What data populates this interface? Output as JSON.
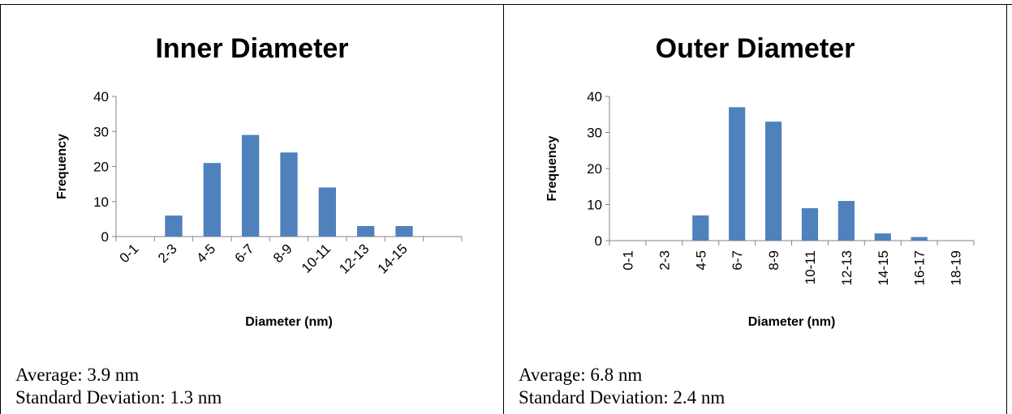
{
  "panels": [
    {
      "average": "Average: 3.9 nm",
      "std_dev": "Standard Deviation: 1.3 nm"
    },
    {
      "average": "Average: 6.8 nm",
      "std_dev": "Standard Deviation: 2.4 nm"
    }
  ],
  "chart_data": [
    {
      "type": "bar",
      "title": "Inner Diameter",
      "xlabel": "Diameter (nm)",
      "ylabel": "Frequency",
      "categories": [
        "0-1",
        "2-3",
        "4-5",
        "6-7",
        "8-9",
        "10-11",
        "12-13",
        "14-15",
        ""
      ],
      "values": [
        0,
        6,
        21,
        29,
        24,
        14,
        3,
        3,
        0
      ],
      "ylim": [
        0,
        40
      ],
      "yticks": [
        0,
        10,
        20,
        30,
        40
      ],
      "tick_rotation": "diagonal",
      "grid": false,
      "bar_color": "#4f81bd"
    },
    {
      "type": "bar",
      "title": "Outer Diameter",
      "xlabel": "Diameter (nm)",
      "ylabel": "Frequency",
      "categories": [
        "0-1",
        "2-3",
        "4-5",
        "6-7",
        "8-9",
        "10-11",
        "12-13",
        "14-15",
        "16-17",
        "18-19"
      ],
      "values": [
        0,
        0,
        7,
        37,
        33,
        9,
        11,
        2,
        1,
        0
      ],
      "ylim": [
        0,
        40
      ],
      "yticks": [
        0,
        10,
        20,
        30,
        40
      ],
      "tick_rotation": "vertical",
      "grid": false,
      "bar_color": "#4f81bd"
    }
  ]
}
